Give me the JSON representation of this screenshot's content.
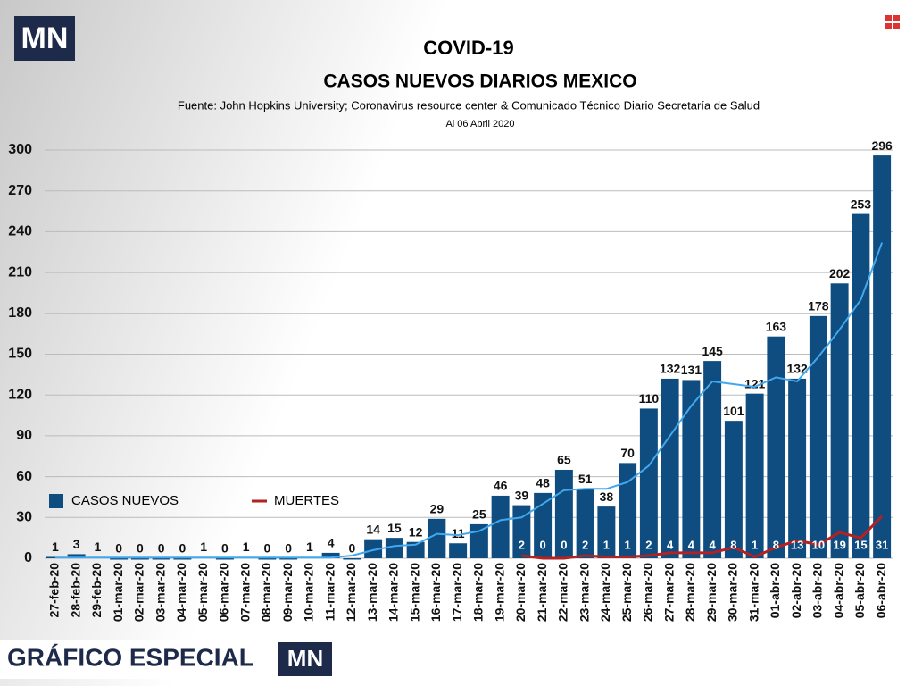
{
  "logo": "MN",
  "footer": "GRÁFICO ESPECIAL",
  "chart_data": {
    "type": "bar",
    "title": "COVID-19",
    "subtitle": "CASOS NUEVOS DIARIOS MEXICO",
    "source": "Fuente: John Hopkins University; Coronavirus resource center & Comunicado Técnico Diario Secretaría de Salud",
    "date_note": "Al 06 Abril 2020",
    "categories": [
      "27-feb-20",
      "28-feb-20",
      "29-feb-20",
      "01-mar-20",
      "02-mar-20",
      "03-mar-20",
      "04-mar-20",
      "05-mar-20",
      "06-mar-20",
      "07-mar-20",
      "08-mar-20",
      "09-mar-20",
      "10-mar-20",
      "11-mar-20",
      "12-mar-20",
      "13-mar-20",
      "14-mar-20",
      "15-mar-20",
      "16-mar-20",
      "17-mar-20",
      "18-mar-20",
      "19-mar-20",
      "20-mar-20",
      "21-mar-20",
      "22-mar-20",
      "23-mar-20",
      "24-mar-20",
      "25-mar-20",
      "26-mar-20",
      "27-mar-20",
      "28-mar-20",
      "29-mar-20",
      "30-mar-20",
      "31-mar-20",
      "01-abr-20",
      "02-abr-20",
      "03-abr-20",
      "04-abr-20",
      "05-abr-20",
      "06-abr-20"
    ],
    "series": [
      {
        "name": "CASOS NUEVOS",
        "type": "bar",
        "color": "#0f4c7f",
        "values": [
          1,
          3,
          1,
          0,
          0,
          0,
          0,
          1,
          0,
          1,
          0,
          0,
          1,
          4,
          0,
          14,
          15,
          12,
          29,
          11,
          25,
          46,
          39,
          48,
          65,
          51,
          38,
          70,
          110,
          132,
          131,
          145,
          101,
          121,
          163,
          132,
          178,
          202,
          253,
          296
        ]
      },
      {
        "name": "MUERTES",
        "type": "line",
        "color": "#b22222",
        "values": [
          null,
          null,
          null,
          null,
          null,
          null,
          null,
          null,
          null,
          null,
          null,
          null,
          null,
          null,
          null,
          null,
          null,
          null,
          null,
          null,
          null,
          null,
          2,
          0,
          0,
          2,
          1,
          1,
          2,
          4,
          4,
          4,
          8,
          1,
          8,
          13,
          10,
          19,
          15,
          31
        ]
      },
      {
        "type": "line",
        "color": "#41a8ee",
        "values": [
          0.5,
          0.5,
          0.5,
          0.5,
          0.5,
          0.5,
          0.5,
          0.5,
          0.5,
          0.5,
          0.5,
          0.5,
          0.5,
          0.5,
          2,
          6,
          9,
          10,
          18,
          17,
          20,
          28,
          30,
          40,
          50,
          51,
          51,
          56,
          68,
          90,
          112,
          130,
          128,
          126,
          133,
          130,
          148,
          168,
          190,
          232
        ]
      }
    ],
    "ylim": [
      0,
      300
    ],
    "yticks": [
      0,
      30,
      60,
      90,
      120,
      150,
      180,
      210,
      240,
      270,
      300
    ],
    "grid": true
  }
}
